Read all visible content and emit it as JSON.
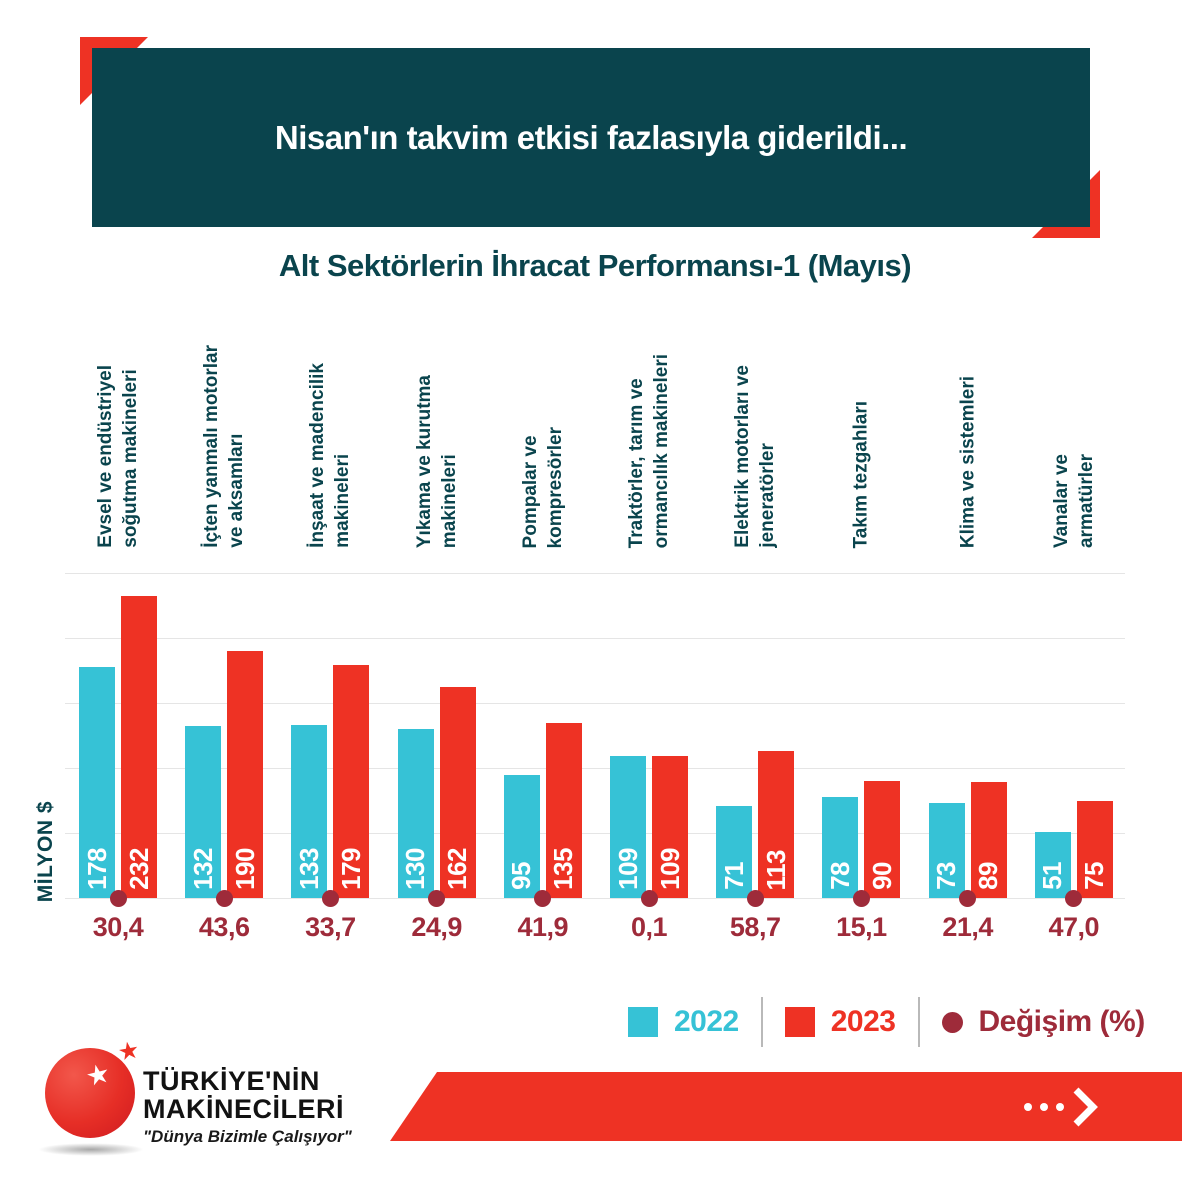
{
  "colors": {
    "teal": "#0a444d",
    "cyan": "#36c2d6",
    "red": "#ee3224",
    "maroon": "#9e2b3a",
    "grid": "#e5e5e5"
  },
  "header": {
    "title": "Nisan'ın takvim etkisi fazlasıyla giderildi..."
  },
  "chart_data": {
    "type": "bar",
    "title": "Alt Sektörlerin İhracat Performansı-1 (Mayıs)",
    "ylabel": "MİLYON $",
    "ylim": [
      0,
      250
    ],
    "gridline_step": 50,
    "grid": "on",
    "legend_position": "bottom",
    "categories": [
      [
        "Evsel ve endüstriyel",
        "soğutma makineleri"
      ],
      [
        "İçten yanmalı motorlar",
        "ve aksamları"
      ],
      [
        "İnşaat ve madencilik",
        "makineleri"
      ],
      [
        "Yıkama ve kurutma",
        "makineleri"
      ],
      [
        "Pompalar ve",
        "kompresörler"
      ],
      [
        "Traktörler, tarım ve",
        "ormancılık makineleri"
      ],
      [
        "Elektrik motorları ve",
        "jeneratörler"
      ],
      [
        "Takım tezgahları"
      ],
      [
        "Klima ve sistemleri"
      ],
      [
        "Vanalar ve",
        "armatürler"
      ]
    ],
    "series": [
      {
        "name": "2022",
        "color": "#36c2d6",
        "values": [
          178,
          132,
          133,
          130,
          95,
          109,
          71,
          78,
          73,
          51
        ]
      },
      {
        "name": "2023",
        "color": "#ee3224",
        "values": [
          232,
          190,
          179,
          162,
          135,
          109,
          113,
          90,
          89,
          75
        ]
      }
    ],
    "change_percent": {
      "name": "Değişim (%)",
      "color": "#9e2b3a",
      "values": [
        "30,4",
        "43,6",
        "33,7",
        "24,9",
        "41,9",
        "0,1",
        "58,7",
        "15,1",
        "21,4",
        "47,0"
      ]
    }
  },
  "footer": {
    "brand_line1": "TÜRKİYE'NİN",
    "brand_line2": "MAKİNECİLERİ",
    "tagline": "\"Dünya Bizimle Çalışıyor\"",
    "star": "★"
  }
}
